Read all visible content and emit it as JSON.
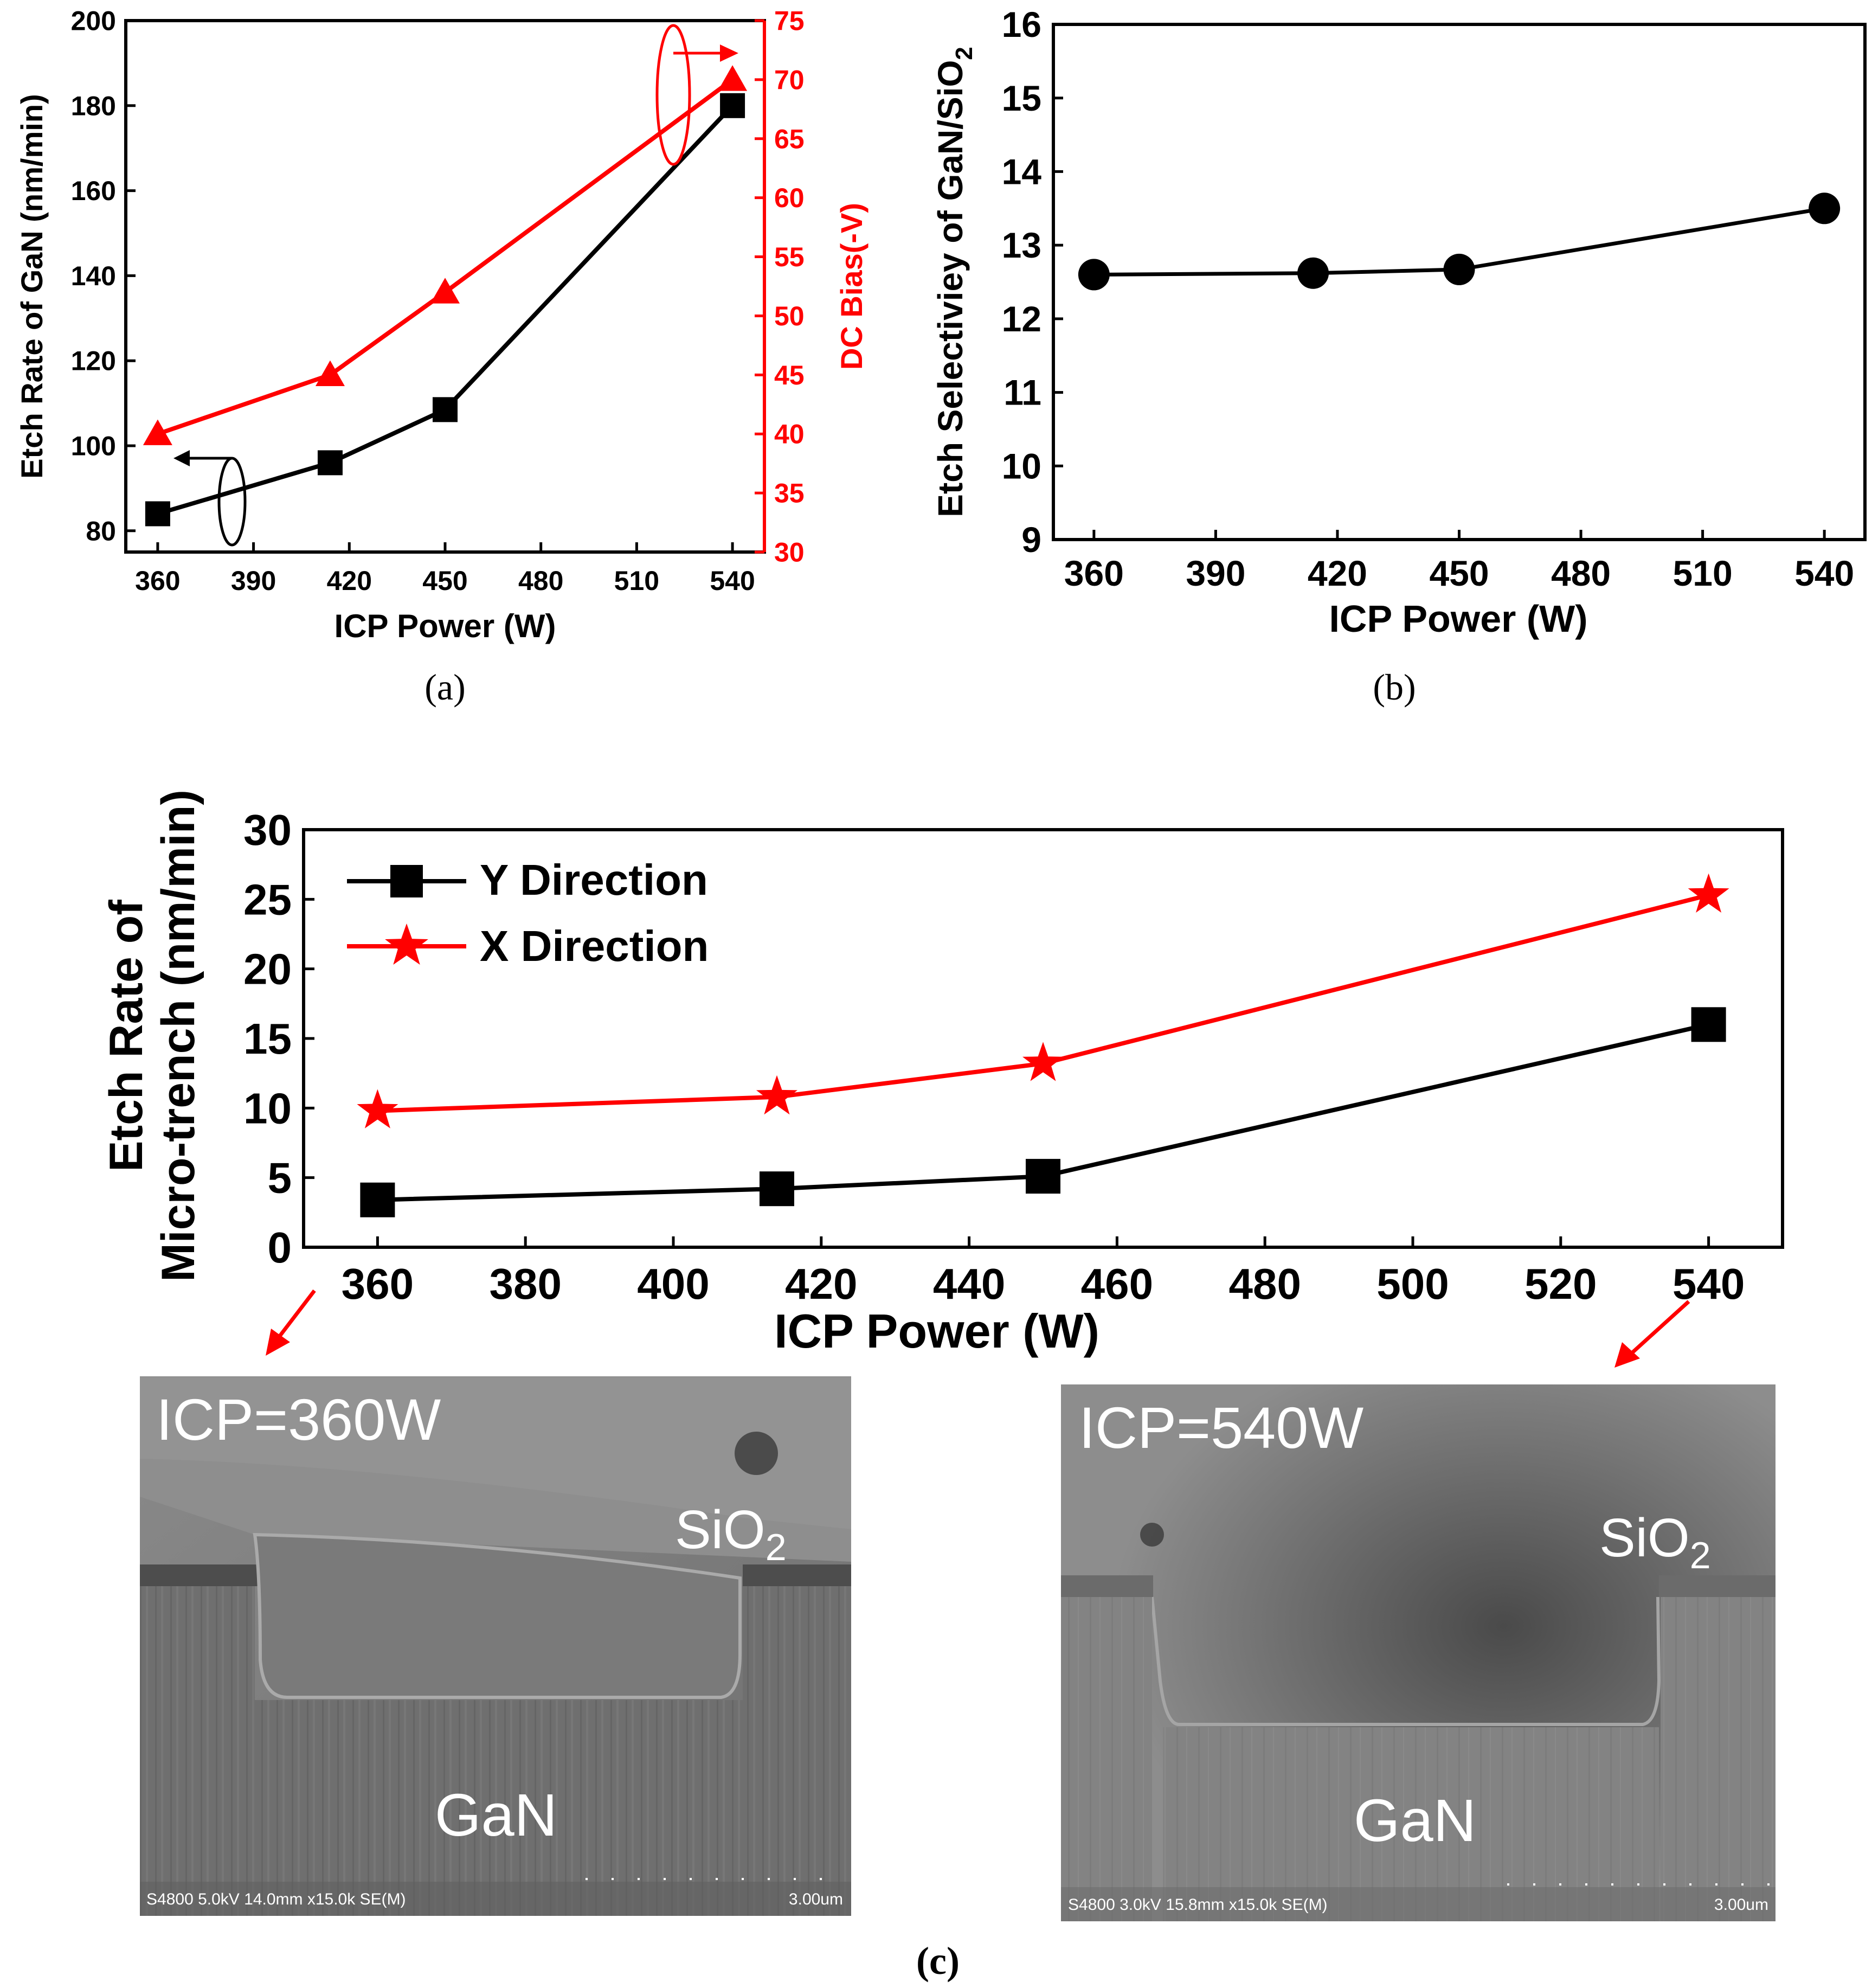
{
  "chart_data": [
    {
      "panel": "a",
      "type": "line",
      "panel_label": "(a)",
      "xlabel": "ICP Power (W)",
      "ylabel": "Etch Rate of GaN (nm/min)",
      "y2label": "DC Bias(-V)",
      "xlim": [
        350,
        550
      ],
      "ylim": [
        75,
        200
      ],
      "y2lim": [
        30,
        75
      ],
      "xticks": [
        "360",
        "390",
        "420",
        "450",
        "480",
        "510",
        "540"
      ],
      "yticks": [
        "80",
        "100",
        "120",
        "140",
        "160",
        "180",
        "200"
      ],
      "y2ticks": [
        "30",
        "35",
        "40",
        "45",
        "50",
        "55",
        "60",
        "65",
        "70",
        "75"
      ],
      "series": [
        {
          "name": "Etch Rate of GaN",
          "axis": "left",
          "color": "#000000",
          "marker": "square",
          "x": [
            360,
            414,
            450,
            540
          ],
          "values": [
            84,
            96,
            108.5,
            180
          ]
        },
        {
          "name": "DC Bias",
          "axis": "right",
          "color": "#ff0000",
          "marker": "triangle",
          "x": [
            360,
            414,
            450,
            540
          ],
          "values": [
            40,
            45,
            52,
            70
          ]
        }
      ]
    },
    {
      "panel": "b",
      "type": "line",
      "panel_label": "(b)",
      "xlabel": "ICP Power (W)",
      "ylabel_main": "Etch Selectiviey of GaN/SiO",
      "ylabel_sub": "2",
      "xlim": [
        350,
        550
      ],
      "ylim": [
        9,
        16
      ],
      "xticks": [
        "360",
        "390",
        "420",
        "450",
        "480",
        "510",
        "540"
      ],
      "yticks": [
        "9",
        "10",
        "11",
        "12",
        "13",
        "14",
        "15",
        "16"
      ],
      "series": [
        {
          "name": "Selectivity",
          "color": "#000000",
          "marker": "circle",
          "x": [
            360,
            414,
            450,
            540
          ],
          "values": [
            12.6,
            12.62,
            12.67,
            13.5
          ]
        }
      ]
    },
    {
      "panel": "c",
      "type": "line",
      "panel_label": "(c)",
      "xlabel": "ICP Power (W)",
      "ylabel_line1": "Etch Rate of",
      "ylabel_line2": "Micro-trench (nm/min)",
      "xlim": [
        350,
        550
      ],
      "ylim": [
        0,
        30
      ],
      "xticks": [
        "360",
        "380",
        "400",
        "420",
        "440",
        "460",
        "480",
        "500",
        "520",
        "540"
      ],
      "yticks": [
        "0",
        "5",
        "10",
        "15",
        "20",
        "25",
        "30"
      ],
      "series": [
        {
          "name": "Y Direction",
          "color": "#000000",
          "marker": "square",
          "x": [
            360,
            414,
            450,
            540
          ],
          "values": [
            3.4,
            4.2,
            5.1,
            16
          ]
        },
        {
          "name": "X Direction",
          "color": "#ff0000",
          "marker": "star",
          "x": [
            360,
            414,
            450,
            540
          ],
          "values": [
            9.8,
            10.8,
            13.2,
            25.3
          ]
        }
      ]
    }
  ],
  "sem_images": [
    {
      "title": "ICP=360W",
      "label_sio2": "SiO",
      "label_sio2_sub": "2",
      "label_gan": "GaN",
      "footer": "S4800 5.0kV 14.0mm x15.0k SE(M)",
      "scale": "3.00um"
    },
    {
      "title": "ICP=540W",
      "label_sio2": "SiO",
      "label_sio2_sub": "2",
      "label_gan": "GaN",
      "footer": "S4800 3.0kV 15.8mm x15.0k SE(M)",
      "scale": "3.00um"
    }
  ],
  "colors": {
    "black": "#000000",
    "red": "#ff0000"
  }
}
